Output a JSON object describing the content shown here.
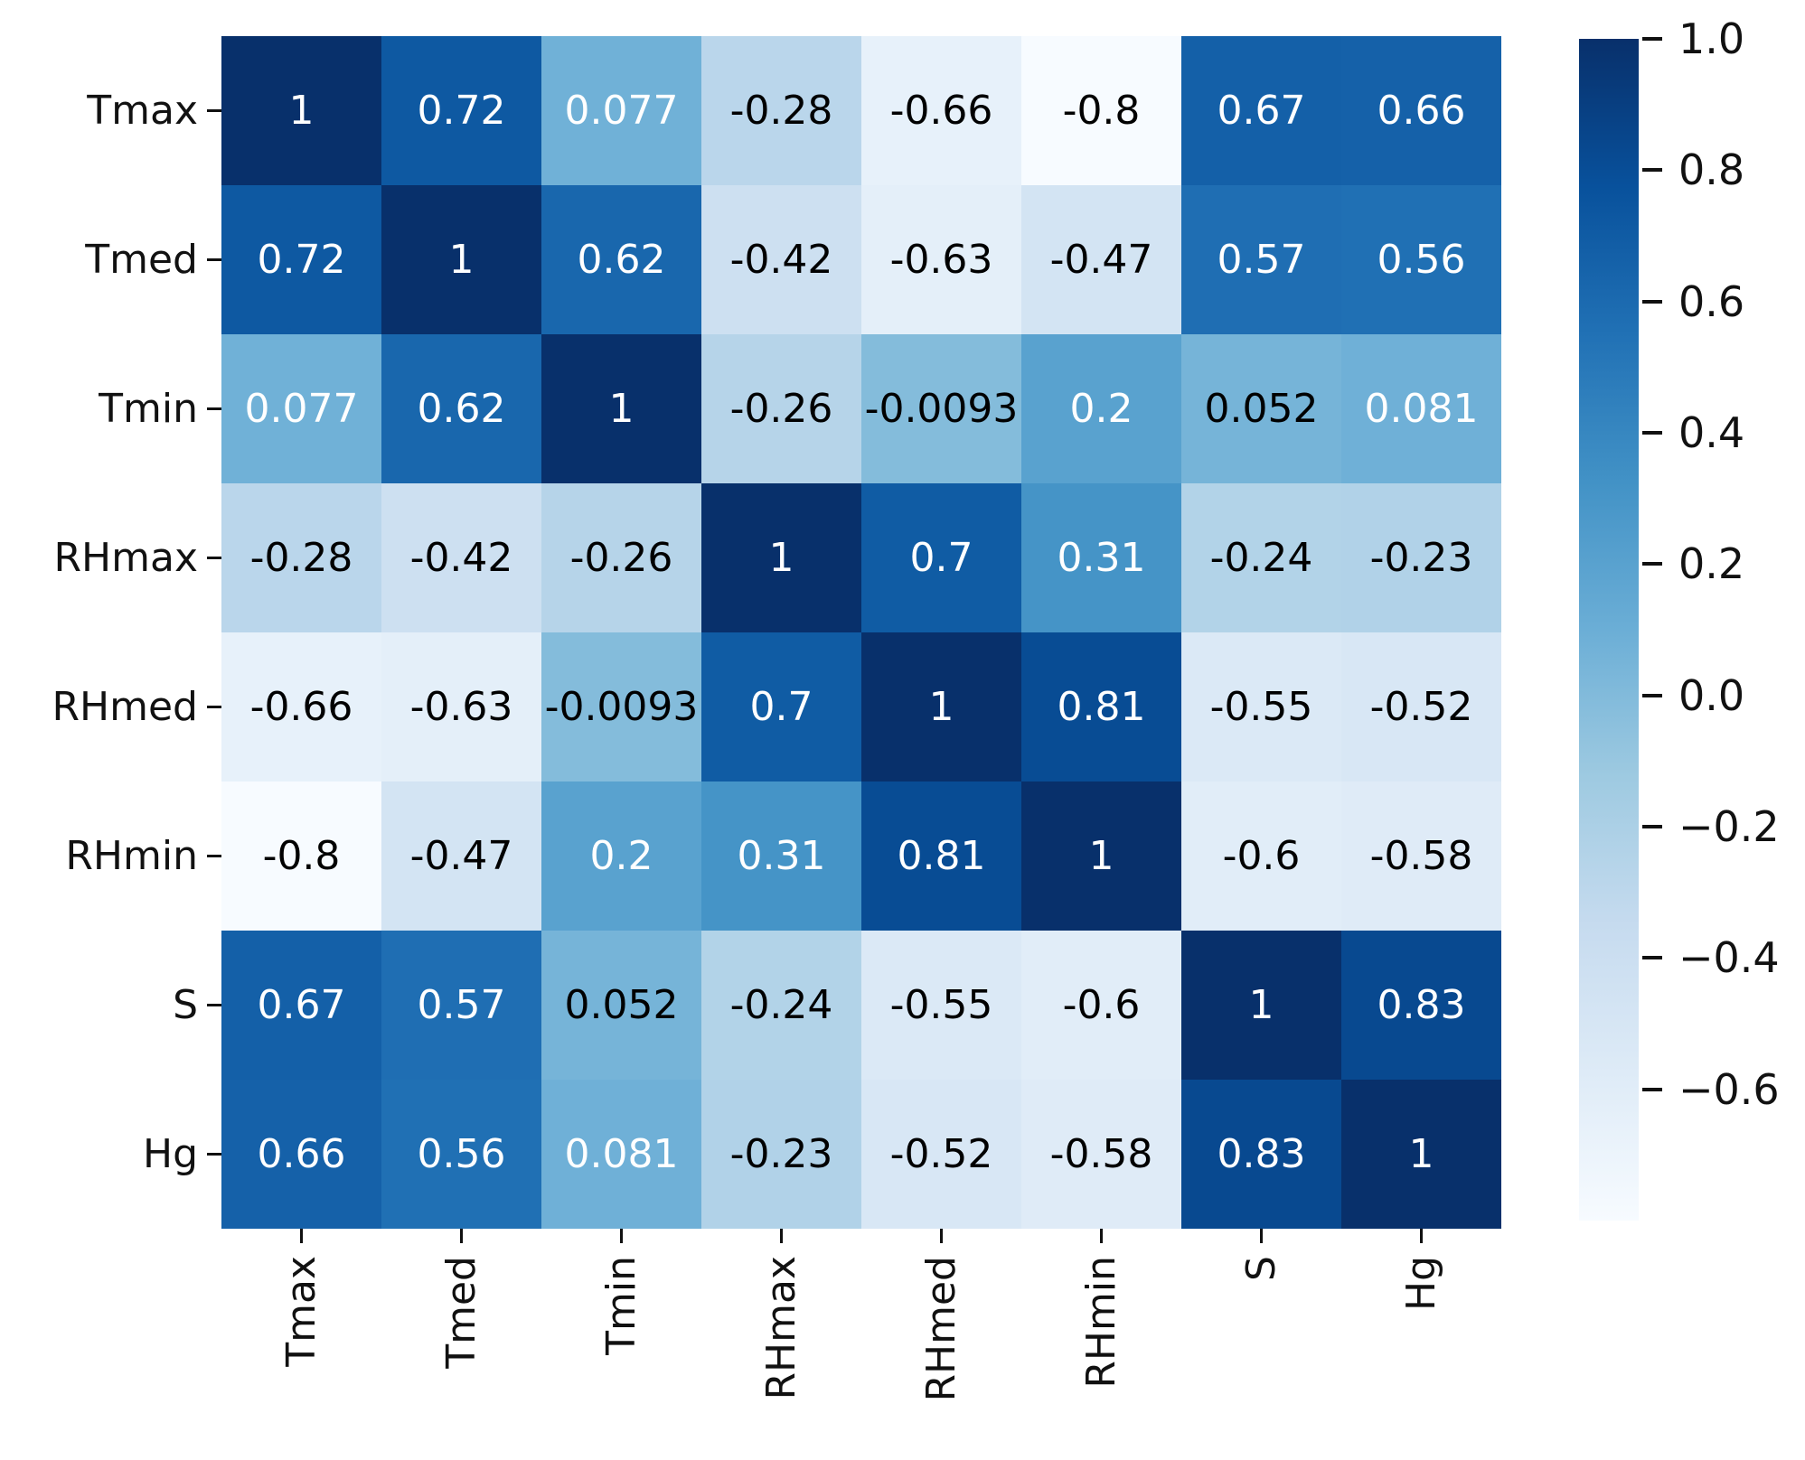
{
  "chart_data": {
    "type": "heatmap",
    "title": "",
    "categories": [
      "Tmax",
      "Tmed",
      "Tmin",
      "RHmax",
      "RHmed",
      "RHmin",
      "S",
      "Hg"
    ],
    "x_tick_labels": [
      "Tmax",
      "Tmed",
      "Tmin",
      "RHmax",
      "RHmed",
      "RHmin",
      "S",
      "Hg"
    ],
    "y_tick_labels": [
      "Tmax",
      "Tmed",
      "Tmin",
      "RHmax",
      "RHmed",
      "RHmin",
      "S",
      "Hg"
    ],
    "matrix": [
      [
        1,
        0.72,
        0.077,
        -0.28,
        -0.66,
        -0.8,
        0.67,
        0.66
      ],
      [
        0.72,
        1,
        0.62,
        -0.42,
        -0.63,
        -0.47,
        0.57,
        0.56
      ],
      [
        0.077,
        0.62,
        1,
        -0.26,
        -0.0093,
        0.2,
        0.052,
        0.081
      ],
      [
        -0.28,
        -0.42,
        -0.26,
        1,
        0.7,
        0.31,
        -0.24,
        -0.23
      ],
      [
        -0.66,
        -0.63,
        -0.0093,
        0.7,
        1,
        0.81,
        -0.55,
        -0.52
      ],
      [
        -0.8,
        -0.47,
        0.2,
        0.31,
        0.81,
        1,
        -0.6,
        -0.58
      ],
      [
        0.67,
        0.57,
        0.052,
        -0.24,
        -0.55,
        -0.6,
        1,
        0.83
      ],
      [
        0.66,
        0.56,
        0.081,
        -0.23,
        -0.52,
        -0.58,
        0.83,
        1
      ]
    ],
    "annotations": [
      [
        "1",
        "0.72",
        "0.077",
        "-0.28",
        "-0.66",
        "-0.8",
        "0.67",
        "0.66"
      ],
      [
        "0.72",
        "1",
        "0.62",
        "-0.42",
        "-0.63",
        "-0.47",
        "0.57",
        "0.56"
      ],
      [
        "0.077",
        "0.62",
        "1",
        "-0.26",
        "-0.0093",
        "0.2",
        "0.052",
        "0.081"
      ],
      [
        "-0.28",
        "-0.42",
        "-0.26",
        "1",
        "0.7",
        "0.31",
        "-0.24",
        "-0.23"
      ],
      [
        "-0.66",
        "-0.63",
        "-0.0093",
        "0.7",
        "1",
        "0.81",
        "-0.55",
        "-0.52"
      ],
      [
        "-0.8",
        "-0.47",
        "0.2",
        "0.31",
        "0.81",
        "1",
        "-0.6",
        "-0.58"
      ],
      [
        "0.67",
        "0.57",
        "0.052",
        "-0.24",
        "-0.55",
        "-0.6",
        "1",
        "0.83"
      ],
      [
        "0.66",
        "0.56",
        "0.081",
        "-0.23",
        "-0.52",
        "-0.58",
        "0.83",
        "1"
      ]
    ],
    "vmin": -0.8,
    "vmax": 1.0,
    "grid": false,
    "legend_position": "colorbar-right",
    "colorbar": {
      "ticks": [
        {
          "value": 1.0,
          "label": "1.0"
        },
        {
          "value": 0.8,
          "label": "0.8"
        },
        {
          "value": 0.6,
          "label": "0.6"
        },
        {
          "value": 0.4,
          "label": "0.4"
        },
        {
          "value": 0.2,
          "label": "0.2"
        },
        {
          "value": 0.0,
          "label": "0.0"
        },
        {
          "value": -0.2,
          "label": "−0.2"
        },
        {
          "value": -0.4,
          "label": "−0.4"
        },
        {
          "value": -0.6,
          "label": "−0.6"
        }
      ]
    },
    "colors": {
      "colormap_name": "Blues",
      "blues_anchors": [
        "#f7fbff",
        "#deebf7",
        "#c6dbef",
        "#9ecae1",
        "#6baed6",
        "#4292c6",
        "#2171b5",
        "#08519c",
        "#08306b"
      ],
      "annot_dark": "#000000",
      "annot_light": "#ffffff",
      "axis_text": "#111111",
      "background": "#ffffff",
      "text_luminance_threshold": 0.408
    }
  }
}
